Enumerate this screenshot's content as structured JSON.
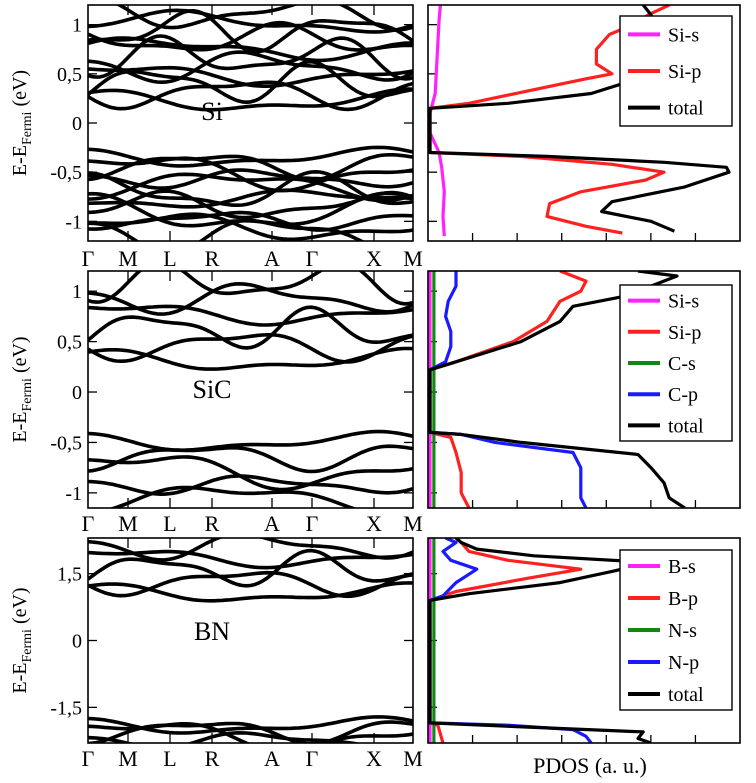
{
  "figure": {
    "x_axis_label": "PDOS (a. u.)",
    "k_labels": [
      "Γ",
      "M",
      "L",
      "R",
      "A",
      "Γ",
      "X",
      "M"
    ],
    "ylabel": {
      "prefix": "E-E",
      "subscript": "Fermi",
      "suffix": " (eV)"
    }
  },
  "chart_data": [
    {
      "type": "line",
      "title": "Si",
      "panel": "band structure + PDOS",
      "ylim": [
        -1.2,
        1.2
      ],
      "y_ticks": [
        -1,
        -0.5,
        0,
        0.5,
        1
      ],
      "y_tick_labels": [
        "-1",
        "-0,5",
        "0",
        "0,5",
        "1"
      ],
      "x_k_points": [
        "Γ",
        "M",
        "L",
        "R",
        "A",
        "Γ",
        "X",
        "M"
      ],
      "band_gap_ev": [
        -0.31,
        0.17
      ],
      "legend": [
        "Si-s",
        "Si-p",
        "total"
      ],
      "series": [
        {
          "name": "Si-s",
          "color": "#ff22ff",
          "energy": [
            -1.15,
            -0.95,
            -0.7,
            -0.45,
            -0.3,
            -0.1,
            0.1,
            0.3,
            0.55,
            0.8,
            1.05,
            1.2
          ],
          "pdos": [
            0.055,
            0.05,
            0.055,
            0.045,
            0.035,
            0.0,
            0.0,
            0.02,
            0.025,
            0.03,
            0.035,
            0.04
          ]
        },
        {
          "name": "Si-p",
          "color": "#ff2020",
          "energy": [
            -1.12,
            -1.05,
            -0.95,
            -0.82,
            -0.7,
            -0.58,
            -0.5,
            -0.42,
            -0.34,
            -0.3,
            -0.2,
            0.0,
            0.15,
            0.2,
            0.35,
            0.45,
            0.5,
            0.6,
            0.75,
            0.9,
            1.0,
            1.1,
            1.2
          ],
          "pdos": [
            0.74,
            0.6,
            0.45,
            0.46,
            0.58,
            0.83,
            0.9,
            0.7,
            0.35,
            0.0,
            0.0,
            0.0,
            0.0,
            0.15,
            0.42,
            0.6,
            0.7,
            0.64,
            0.64,
            0.69,
            0.78,
            0.84,
            0.92
          ]
        },
        {
          "name": "total",
          "color": "#000000",
          "energy": [
            -1.1,
            -1.0,
            -0.9,
            -0.8,
            -0.65,
            -0.5,
            -0.45,
            -0.4,
            -0.34,
            -0.3,
            -0.2,
            0.0,
            0.15,
            0.2,
            0.3,
            0.45,
            0.55,
            0.6,
            0.7,
            0.8,
            0.9,
            1.0,
            1.1,
            1.2
          ],
          "pdos": [
            0.94,
            0.85,
            0.66,
            0.7,
            0.98,
            1.15,
            1.14,
            0.9,
            0.45,
            0.0,
            0.0,
            0.0,
            0.0,
            0.3,
            0.62,
            0.8,
            0.85,
            0.97,
            0.98,
            0.9,
            0.85,
            0.84,
            0.85,
            0.82
          ]
        }
      ]
    },
    {
      "type": "line",
      "title": "SiC",
      "panel": "band structure + PDOS",
      "ylim": [
        -1.15,
        1.2
      ],
      "y_ticks": [
        -1,
        -0.5,
        0,
        0.5,
        1
      ],
      "y_tick_labels": [
        "-1",
        "-0,5",
        "0",
        "0,5",
        "1"
      ],
      "x_k_points": [
        "Γ",
        "M",
        "L",
        "R",
        "A",
        "Γ",
        "X",
        "M"
      ],
      "band_gap_ev": [
        -0.41,
        0.22
      ],
      "legend": [
        "Si-s",
        "Si-p",
        "C-s",
        "C-p",
        "total"
      ],
      "series": [
        {
          "name": "Si-s",
          "color": "#ff22ff",
          "energy": [
            -1.15,
            -0.4,
            0.2,
            1.2
          ],
          "pdos": [
            0.0,
            0.0,
            0.0,
            0.0
          ]
        },
        {
          "name": "Si-p",
          "color": "#ff2020",
          "energy": [
            -1.15,
            -1.0,
            -0.8,
            -0.6,
            -0.45,
            -0.4,
            0.22,
            0.3,
            0.5,
            0.7,
            0.9,
            1.0,
            1.1,
            1.2
          ],
          "pdos": [
            0.15,
            0.12,
            0.12,
            0.1,
            0.08,
            0.0,
            0.0,
            0.1,
            0.32,
            0.45,
            0.5,
            0.58,
            0.6,
            0.5
          ]
        },
        {
          "name": "C-s",
          "color": "#118811",
          "energy": [
            -1.15,
            -0.4,
            0.2,
            1.2
          ],
          "pdos": [
            0.015,
            0.015,
            0.015,
            0.015
          ]
        },
        {
          "name": "C-p",
          "color": "#1a1aff",
          "energy": [
            -1.15,
            -1.05,
            -0.9,
            -0.75,
            -0.6,
            -0.5,
            -0.42,
            -0.4,
            0.22,
            0.3,
            0.45,
            0.6,
            0.75,
            0.9,
            1.05,
            1.2
          ],
          "pdos": [
            0.6,
            0.58,
            0.58,
            0.58,
            0.55,
            0.25,
            0.12,
            0.0,
            0.0,
            0.06,
            0.08,
            0.08,
            0.06,
            0.07,
            0.1,
            0.1
          ]
        },
        {
          "name": "total",
          "color": "#000000",
          "energy": [
            -1.15,
            -1.05,
            -0.9,
            -0.75,
            -0.62,
            -0.5,
            -0.42,
            -0.4,
            0.22,
            0.3,
            0.5,
            0.7,
            0.85,
            0.95,
            1.05,
            1.15,
            1.2
          ],
          "pdos": [
            0.98,
            0.92,
            0.9,
            0.85,
            0.8,
            0.35,
            0.12,
            0.0,
            0.0,
            0.1,
            0.35,
            0.5,
            0.55,
            0.75,
            0.85,
            0.95,
            0.8
          ]
        }
      ]
    },
    {
      "type": "line",
      "title": "BN",
      "panel": "band structure + PDOS",
      "ylim": [
        -2.3,
        2.3
      ],
      "y_ticks": [
        -1.5,
        0,
        1.5
      ],
      "y_tick_labels": [
        "-1,5",
        "0",
        "1,5"
      ],
      "x_k_points": [
        "Γ",
        "M",
        "L",
        "R",
        "A",
        "Γ",
        "X",
        "M"
      ],
      "band_gap_ev": [
        -1.85,
        0.9
      ],
      "legend": [
        "B-s",
        "B-p",
        "N-s",
        "N-p",
        "total"
      ],
      "series": [
        {
          "name": "B-s",
          "color": "#ff22ff",
          "energy": [
            -2.3,
            -1.8,
            0.9,
            2.3
          ],
          "pdos": [
            0.0,
            0.0,
            0.0,
            0.0
          ]
        },
        {
          "name": "B-p",
          "color": "#ff2020",
          "energy": [
            -2.3,
            -1.9,
            -1.85,
            0.9,
            1.1,
            1.4,
            1.6,
            1.8,
            2.0,
            2.2,
            2.3
          ],
          "pdos": [
            0.05,
            0.03,
            0.0,
            0.0,
            0.1,
            0.38,
            0.58,
            0.3,
            0.15,
            0.12,
            0.1
          ]
        },
        {
          "name": "N-s",
          "color": "#118811",
          "energy": [
            -2.3,
            -1.8,
            0.9,
            2.3
          ],
          "pdos": [
            0.015,
            0.015,
            0.015,
            0.015
          ]
        },
        {
          "name": "N-p",
          "color": "#1a1aff",
          "energy": [
            -2.3,
            -2.15,
            -2.0,
            -1.9,
            -1.85,
            0.9,
            1.0,
            1.3,
            1.6,
            1.8,
            2.0,
            2.2,
            2.3
          ],
          "pdos": [
            0.62,
            0.6,
            0.55,
            0.3,
            0.0,
            0.0,
            0.05,
            0.1,
            0.18,
            0.08,
            0.05,
            0.1,
            0.06
          ]
        },
        {
          "name": "total",
          "color": "#000000",
          "energy": [
            -2.3,
            -2.2,
            -2.05,
            -1.95,
            -1.85,
            0.9,
            1.05,
            1.3,
            1.55,
            1.75,
            1.9,
            2.05,
            2.2,
            2.3
          ],
          "pdos": [
            0.85,
            0.8,
            0.82,
            0.4,
            0.0,
            0.0,
            0.15,
            0.5,
            0.7,
            0.85,
            0.4,
            0.18,
            0.12,
            0.1
          ]
        }
      ]
    }
  ]
}
